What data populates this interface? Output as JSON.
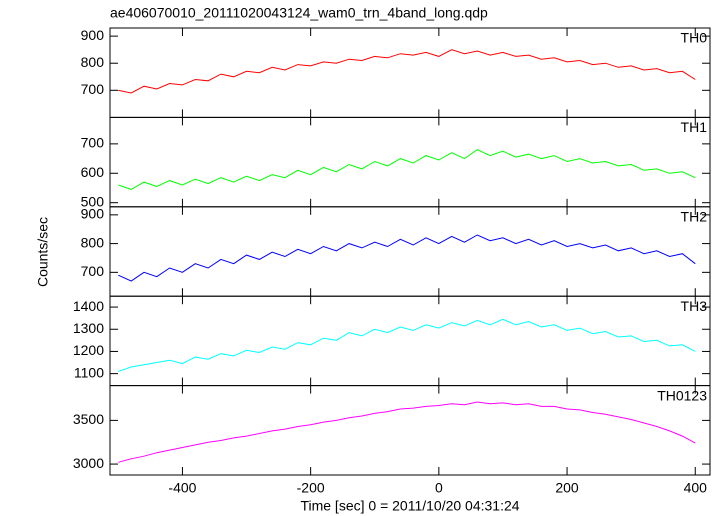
{
  "title": "ae406070010_20111020043124_wam0_trn_4band_long.qdp",
  "xlabel": "Time [sec] 0 = 2011/10/20 04:31:24",
  "ylabel": "Counts/sec",
  "xlim": [
    -513,
    423
  ],
  "xticks": [
    -400,
    -200,
    0,
    200,
    400
  ],
  "x": [
    -500,
    -480,
    -460,
    -440,
    -420,
    -400,
    -380,
    -360,
    -340,
    -320,
    -300,
    -280,
    -260,
    -240,
    -220,
    -200,
    -180,
    -160,
    -140,
    -120,
    -100,
    -80,
    -60,
    -40,
    -20,
    0,
    20,
    40,
    60,
    80,
    100,
    120,
    140,
    160,
    180,
    200,
    220,
    240,
    260,
    280,
    300,
    320,
    340,
    360,
    380,
    400
  ],
  "chart_data": [
    {
      "type": "line",
      "ylim": [
        600,
        930
      ],
      "yticks": [
        700,
        800,
        900
      ],
      "series": [
        {
          "name": "TH0",
          "color": "#ff0000",
          "values": [
            700,
            690,
            715,
            705,
            725,
            720,
            740,
            735,
            760,
            750,
            770,
            765,
            785,
            775,
            795,
            790,
            805,
            800,
            815,
            810,
            825,
            820,
            835,
            830,
            840,
            825,
            850,
            835,
            845,
            830,
            840,
            825,
            830,
            815,
            820,
            805,
            810,
            795,
            800,
            785,
            790,
            775,
            780,
            765,
            770,
            740
          ]
        }
      ]
    },
    {
      "type": "line",
      "ylim": [
        486,
        790
      ],
      "yticks": [
        500,
        600,
        700
      ],
      "series": [
        {
          "name": "TH1",
          "color": "#00ff00",
          "values": [
            560,
            545,
            570,
            555,
            575,
            560,
            580,
            565,
            585,
            570,
            590,
            575,
            595,
            585,
            610,
            595,
            620,
            605,
            630,
            615,
            640,
            625,
            650,
            635,
            660,
            645,
            670,
            650,
            680,
            660,
            675,
            655,
            665,
            650,
            660,
            640,
            650,
            635,
            640,
            625,
            630,
            610,
            615,
            600,
            605,
            585
          ]
        }
      ]
    },
    {
      "type": "line",
      "ylim": [
        617,
        928
      ],
      "yticks": [
        700,
        800,
        900
      ],
      "series": [
        {
          "name": "TH2",
          "color": "#0000ff",
          "values": [
            690,
            670,
            700,
            685,
            715,
            700,
            730,
            715,
            745,
            730,
            760,
            745,
            770,
            755,
            780,
            765,
            790,
            775,
            800,
            785,
            805,
            790,
            815,
            795,
            820,
            800,
            825,
            805,
            830,
            810,
            820,
            800,
            815,
            795,
            810,
            790,
            800,
            785,
            795,
            775,
            785,
            765,
            775,
            755,
            765,
            730
          ]
        }
      ]
    },
    {
      "type": "line",
      "ylim": [
        1046,
        1449
      ],
      "yticks": [
        1100,
        1200,
        1300,
        1400
      ],
      "series": [
        {
          "name": "TH3",
          "color": "#00ffff",
          "values": [
            1110,
            1130,
            1140,
            1150,
            1160,
            1145,
            1175,
            1165,
            1190,
            1180,
            1205,
            1195,
            1220,
            1210,
            1240,
            1230,
            1260,
            1250,
            1285,
            1270,
            1300,
            1285,
            1310,
            1295,
            1320,
            1305,
            1330,
            1315,
            1340,
            1320,
            1345,
            1320,
            1335,
            1310,
            1320,
            1295,
            1305,
            1280,
            1290,
            1265,
            1270,
            1245,
            1250,
            1225,
            1230,
            1200
          ]
        }
      ]
    },
    {
      "type": "line",
      "ylim": [
        2875,
        3898
      ],
      "yticks": [
        3000,
        3500
      ],
      "series": [
        {
          "name": "TH0123",
          "color": "#ff00ff",
          "values": [
            3020,
            3060,
            3090,
            3130,
            3160,
            3190,
            3220,
            3250,
            3270,
            3300,
            3320,
            3350,
            3380,
            3400,
            3430,
            3450,
            3480,
            3500,
            3530,
            3550,
            3580,
            3600,
            3630,
            3640,
            3660,
            3670,
            3690,
            3680,
            3710,
            3690,
            3700,
            3680,
            3690,
            3660,
            3660,
            3630,
            3620,
            3590,
            3570,
            3540,
            3510,
            3470,
            3430,
            3380,
            3320,
            3240
          ]
        }
      ]
    }
  ]
}
